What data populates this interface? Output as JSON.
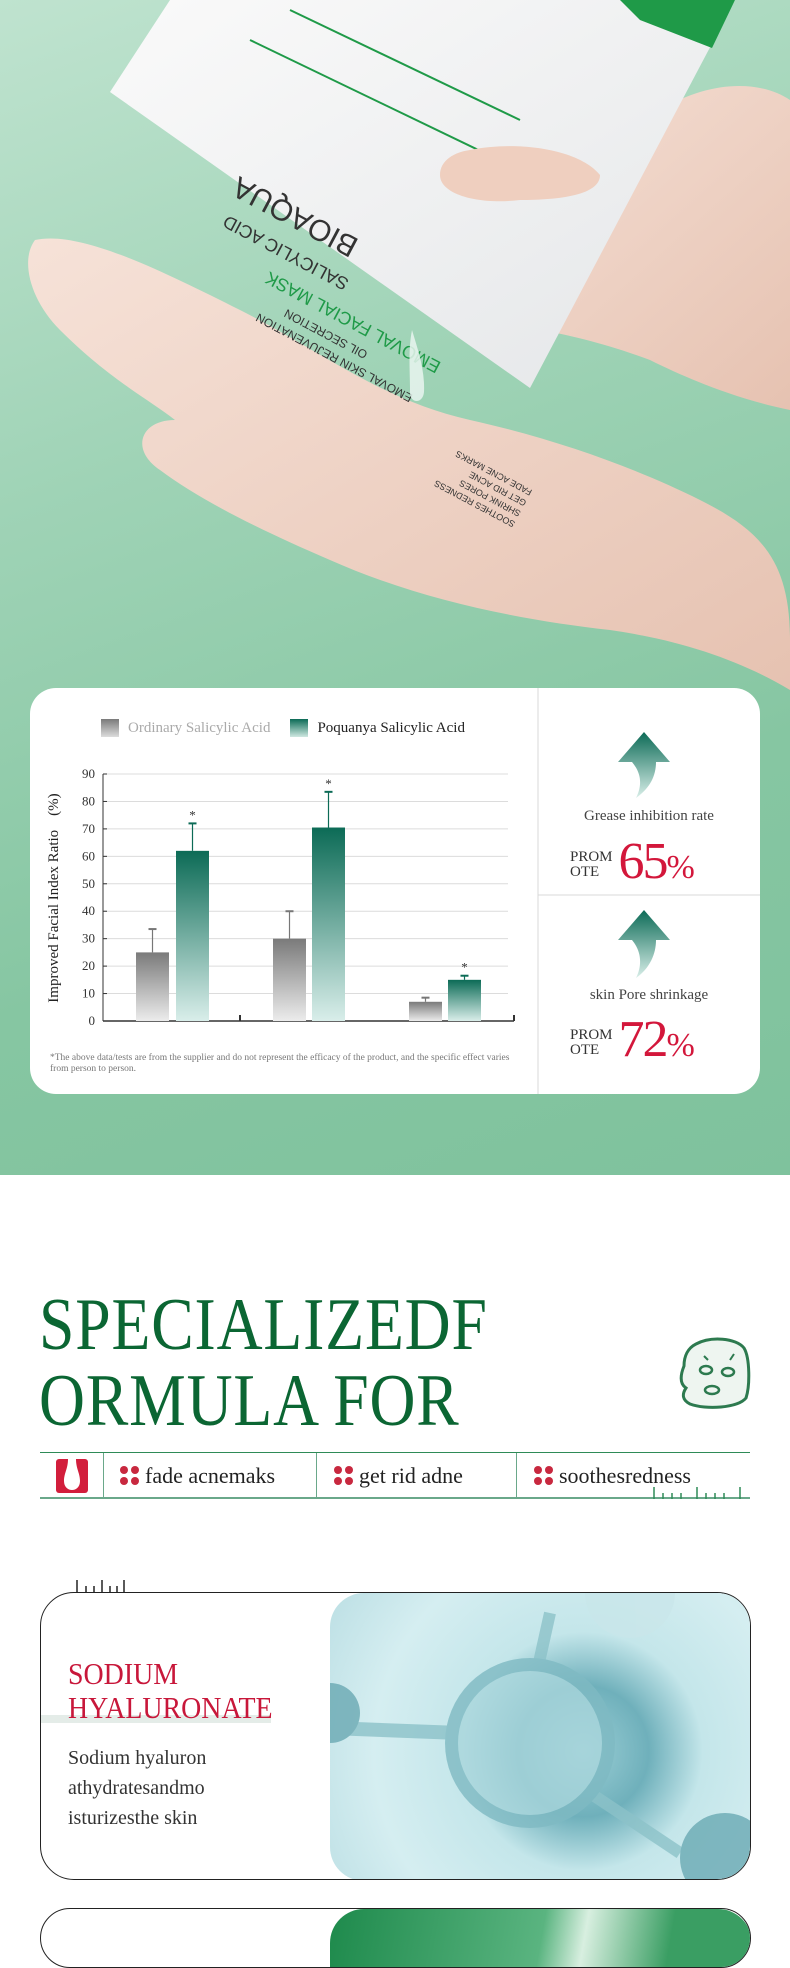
{
  "hero": {
    "packet_brand": "BIOAQUA",
    "packet_lines": [
      "SALICYLIC ACID",
      "EMOVAL FACIAL MASK",
      "OIL SECRETION",
      "EMOVAL SKIN REJUVENATION"
    ],
    "packet_benefits": [
      "FADE ACNE MARKS",
      "GET RID ACNE",
      "SHRINK PORES",
      "SOOTHES REDNESS"
    ],
    "colors": {
      "background": "#8fcbab",
      "packet_green": "#1f9a48",
      "skin": "#f1d8cb"
    }
  },
  "chart_data": {
    "type": "bar",
    "title": "",
    "categories": [
      "",
      "",
      ""
    ],
    "series": [
      {
        "name": "Ordinary Salicylic Acid",
        "values": [
          25,
          30,
          7
        ],
        "error_upper": [
          33.5,
          40,
          8.5
        ],
        "significant": [
          false,
          false,
          false
        ],
        "color": "#808080"
      },
      {
        "name": "Poquanya Salicylic Acid",
        "values": [
          62,
          70.5,
          15
        ],
        "error_upper": [
          72,
          83.5,
          16.5
        ],
        "significant": [
          true,
          true,
          true
        ],
        "color": "#0c6b56"
      }
    ],
    "ylabel": "Improved Facial Index Ratio",
    "ylabel_unit": "(%)",
    "ylim": [
      0,
      90
    ],
    "yticks": [
      "0",
      "10",
      "20",
      "30",
      "40",
      "50",
      "60",
      "70",
      "80",
      "90"
    ],
    "grid": true,
    "legend": "top",
    "significance_mark": "*",
    "footnote": "*The above data/tests are from the supplier and do not represent the efficacy of the product, and the specific effect varies from person to person."
  },
  "stats": [
    {
      "label": "Grease inhibition rate",
      "prefix_1": "PROM",
      "prefix_2": "OTE",
      "value": "65",
      "unit": "%"
    },
    {
      "label": "skin Pore shrinkage",
      "prefix_1": "PROM",
      "prefix_2": "OTE",
      "value": "72",
      "unit": "%"
    }
  ],
  "formula": {
    "headline_1": "SPECIALIZEDF",
    "headline_2": "ORMULA FOR",
    "features": [
      "fade acnemaks",
      "get rid adne",
      "soothesredness"
    ],
    "colors": {
      "headline": "#0b6633",
      "accent": "#c8283f"
    }
  },
  "ingredient": {
    "title_1": "SODIUM",
    "title_2": "HYALURONATE",
    "body": [
      "Sodium hyaluron",
      "athydratesandmo",
      "isturizesthe skin"
    ],
    "colors": {
      "title": "#c8173a"
    }
  }
}
